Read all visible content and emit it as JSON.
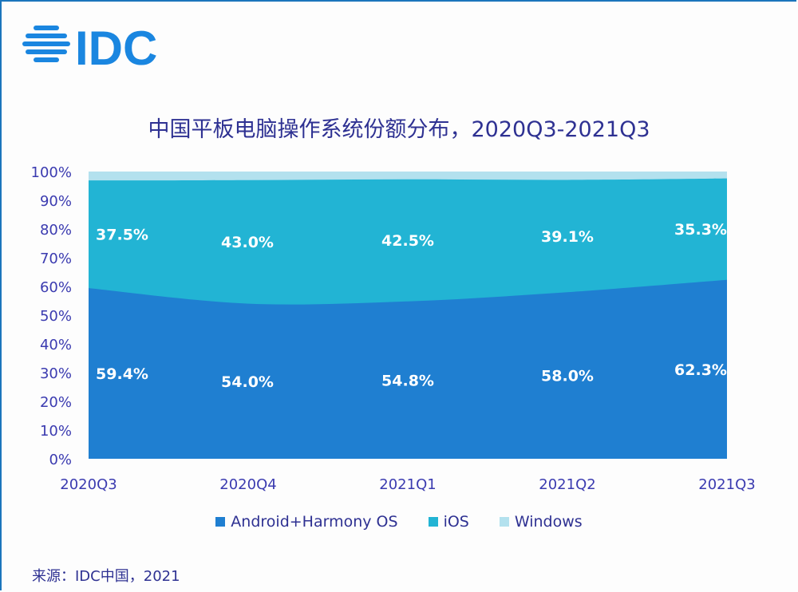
{
  "logo_text": "IDC",
  "source": "来源：IDC中国，2021",
  "chart_data": {
    "type": "area",
    "stacked": true,
    "title": "中国平板电脑操作系统份额分布，2020Q3-2021Q3",
    "categories": [
      "2020Q3",
      "2020Q4",
      "2021Q1",
      "2021Q2",
      "2021Q3"
    ],
    "ylim": [
      0,
      100
    ],
    "yticks": [
      "0%",
      "10%",
      "20%",
      "30%",
      "40%",
      "50%",
      "60%",
      "70%",
      "80%",
      "90%",
      "100%"
    ],
    "grid": false,
    "legend_position": "bottom",
    "series": [
      {
        "name": "Android+Harmony OS",
        "color": "#1f7fd1",
        "values": [
          59.4,
          54.0,
          54.8,
          58.0,
          62.3
        ],
        "labels": [
          "59.4%",
          "54.0%",
          "54.8%",
          "58.0%",
          "62.3%"
        ]
      },
      {
        "name": "iOS",
        "color": "#22b4d4",
        "values": [
          37.5,
          43.0,
          42.5,
          39.1,
          35.3
        ],
        "labels": [
          "37.5%",
          "43.0%",
          "42.5%",
          "39.1%",
          "35.3%"
        ]
      },
      {
        "name": "Windows",
        "color": "#b3e1ee",
        "values": [
          3.1,
          3.0,
          2.7,
          2.9,
          2.4
        ]
      }
    ]
  }
}
